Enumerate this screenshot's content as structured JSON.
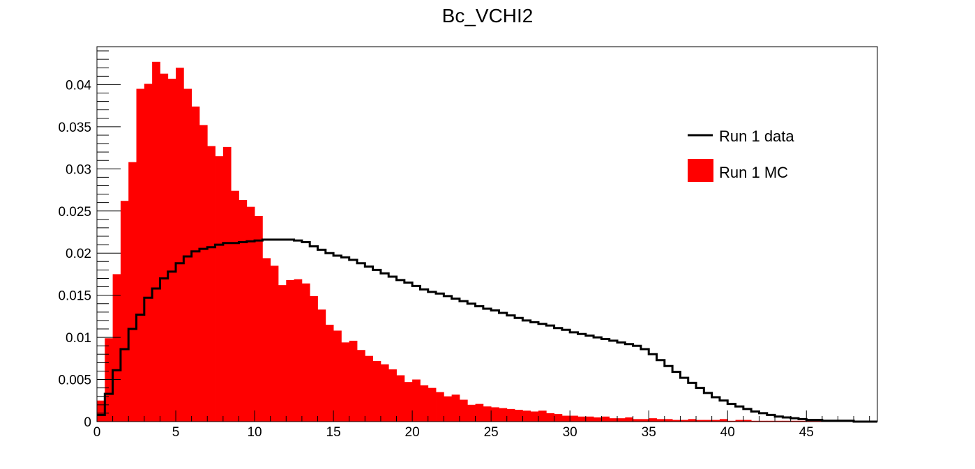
{
  "chart_data": {
    "type": "bar",
    "title": "Bc_VCHI2",
    "xlabel": "",
    "ylabel": "",
    "xlim": [
      0,
      49.5
    ],
    "ylim": [
      0,
      0.0445
    ],
    "bin_width": 0.5,
    "x_ticks": [
      0,
      5,
      10,
      15,
      20,
      25,
      30,
      35,
      40,
      45
    ],
    "x_tick_labels": [
      "0",
      "5",
      "10",
      "15",
      "20",
      "25",
      "30",
      "35",
      "40",
      "45"
    ],
    "y_ticks": [
      0,
      0.005,
      0.01,
      0.015,
      0.02,
      0.025,
      0.03,
      0.035,
      0.04
    ],
    "y_tick_labels": [
      "0",
      "0.005",
      "0.01",
      "0.015",
      "0.02",
      "0.025",
      "0.03",
      "0.035",
      "0.04"
    ],
    "legend": {
      "position": "top-right",
      "entries": [
        "Run 1 data",
        "Run 1 MC"
      ]
    },
    "series": [
      {
        "name": "Run 1 MC",
        "style": "filled-histogram",
        "color": "#ff0000",
        "x_start": 0,
        "values": [
          0.0025,
          0.0099,
          0.0175,
          0.0262,
          0.0308,
          0.0395,
          0.0401,
          0.0427,
          0.0413,
          0.0407,
          0.042,
          0.0395,
          0.0374,
          0.0352,
          0.0327,
          0.0315,
          0.0326,
          0.0274,
          0.0263,
          0.0255,
          0.0244,
          0.0194,
          0.0185,
          0.0162,
          0.0168,
          0.0169,
          0.0164,
          0.0149,
          0.0133,
          0.0115,
          0.0108,
          0.0094,
          0.0096,
          0.0085,
          0.0078,
          0.0072,
          0.0068,
          0.0062,
          0.0055,
          0.0047,
          0.005,
          0.0043,
          0.004,
          0.0035,
          0.003,
          0.0032,
          0.0026,
          0.002,
          0.0021,
          0.0018,
          0.0017,
          0.0016,
          0.0015,
          0.0014,
          0.0013,
          0.0012,
          0.0013,
          0.001,
          0.0009,
          0.0007,
          0.0007,
          0.0006,
          0.0006,
          0.0005,
          0.0006,
          0.0004,
          0.0004,
          0.0005,
          0.0003,
          0.0003,
          0.0004,
          0.0003,
          0.0003,
          0.0002,
          0.0002,
          0.0003,
          0.0002,
          0.0002,
          0.0002,
          0.0003,
          0.0001,
          0.0002,
          0.0002,
          0.0001,
          0.0001,
          0.0001,
          0.0001,
          0.0001,
          0.0001,
          0.0001,
          0.0001,
          0.0001,
          0.0001,
          0.0001,
          0.0001,
          0.0001,
          0.0001,
          0.0001,
          0.0001
        ]
      },
      {
        "name": "Run 1 data",
        "style": "step-line",
        "color": "#000000",
        "x_start": 0,
        "values": [
          0.0008,
          0.0033,
          0.0061,
          0.0086,
          0.011,
          0.0127,
          0.0147,
          0.0158,
          0.017,
          0.0178,
          0.0188,
          0.0196,
          0.0202,
          0.0205,
          0.0207,
          0.021,
          0.0212,
          0.0212,
          0.0213,
          0.0214,
          0.0215,
          0.0216,
          0.0216,
          0.0216,
          0.0216,
          0.0215,
          0.0213,
          0.0208,
          0.0204,
          0.02,
          0.0197,
          0.0195,
          0.0192,
          0.0188,
          0.0184,
          0.018,
          0.0176,
          0.0172,
          0.0168,
          0.0165,
          0.0161,
          0.0157,
          0.0154,
          0.0152,
          0.0149,
          0.0146,
          0.0143,
          0.014,
          0.0137,
          0.0134,
          0.0132,
          0.0129,
          0.0126,
          0.0123,
          0.012,
          0.0118,
          0.0116,
          0.0114,
          0.0111,
          0.0109,
          0.0106,
          0.0104,
          0.0102,
          0.01,
          0.0098,
          0.0096,
          0.0094,
          0.0092,
          0.009,
          0.0086,
          0.008,
          0.0073,
          0.0066,
          0.0059,
          0.0052,
          0.0046,
          0.004,
          0.0034,
          0.0029,
          0.0025,
          0.0021,
          0.0018,
          0.0015,
          0.0012,
          0.001,
          0.0008,
          0.0006,
          0.0005,
          0.0004,
          0.0003,
          0.0002,
          0.0002,
          0.0001,
          0.0001,
          0.0001,
          0.0001,
          0.0,
          0.0,
          0.0
        ]
      }
    ]
  }
}
